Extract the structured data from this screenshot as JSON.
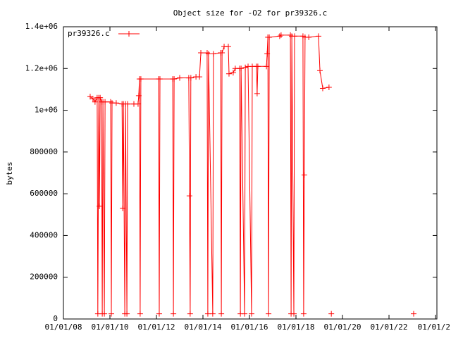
{
  "chart_data": {
    "type": "line",
    "title": "Object size for -O2 for pr39326.c",
    "ylabel": "bytes",
    "xlim": [
      2008,
      2024.06
    ],
    "xticks": [
      {
        "value": 2008,
        "label": "01/01/08"
      },
      {
        "value": 2010,
        "label": "01/01/10"
      },
      {
        "value": 2012,
        "label": "01/01/12"
      },
      {
        "value": 2014,
        "label": "01/01/14"
      },
      {
        "value": 2016,
        "label": "01/01/16"
      },
      {
        "value": 2018,
        "label": "01/01/18"
      },
      {
        "value": 2020,
        "label": "01/01/20"
      },
      {
        "value": 2022,
        "label": "01/01/22"
      },
      {
        "value": 2024,
        "label": "01/01/2"
      }
    ],
    "ylim": [
      0,
      1400000
    ],
    "yticks": [
      0,
      200000,
      400000,
      600000,
      800000,
      {
        "value": 1000000,
        "label": "1e+06"
      },
      {
        "value": 1200000,
        "label": "1.2e+06"
      },
      {
        "value": 1400000,
        "label": "1.4e+06"
      }
    ],
    "legend": "top-left",
    "series": [
      {
        "name": "pr39326.c",
        "color": "#ff0000",
        "x": [
          2009.15,
          2009.27,
          2009.36,
          2009.45,
          2009.48,
          2009.52,
          2009.55,
          2009.58,
          2009.64,
          2009.67,
          2009.7,
          2009.76,
          2009.79,
          2010.03,
          2010.06,
          2010.09,
          2010.27,
          2010.52,
          2010.55,
          2010.58,
          2010.64,
          2010.67,
          2010.73,
          2010.76,
          2011.03,
          2011.21,
          2011.24,
          2011.27,
          2011.3,
          2011.33,
          2012.09,
          2012.12,
          2012.15,
          2012.7,
          2012.73,
          2012.76,
          2013.0,
          2013.39,
          2013.42,
          2013.45,
          2013.48,
          2013.7,
          2013.85,
          2013.91,
          2014.18,
          2014.21,
          2014.24,
          2014.42,
          2014.45,
          2014.76,
          2014.79,
          2014.82,
          2014.91,
          2015.09,
          2015.12,
          2015.3,
          2015.39,
          2015.58,
          2015.61,
          2015.64,
          2015.79,
          2015.82,
          2015.94,
          2016.09,
          2016.12,
          2016.3,
          2016.33,
          2016.36,
          2016.73,
          2016.76,
          2016.79,
          2016.82,
          2016.85,
          2017.3,
          2017.36,
          2017.76,
          2017.79,
          2017.82,
          2017.91,
          2017.94,
          2018.3,
          2018.33,
          2018.36,
          2018.39,
          2018.55,
          2018.97,
          2019.03,
          2019.15,
          2019.42,
          2019.5,
          2019.52,
          2020.5,
          2023.06
        ],
        "values": [
          1065000,
          1055000,
          1040000,
          1060000,
          25000,
          1060000,
          540000,
          1060000,
          1040000,
          25000,
          1040000,
          25000,
          1040000,
          1040000,
          25000,
          1035000,
          1035000,
          1030000,
          530000,
          1030000,
          25000,
          1030000,
          25000,
          1030000,
          1030000,
          1030000,
          1070000,
          1150000,
          25000,
          1150000,
          1150000,
          25000,
          1150000,
          1150000,
          25000,
          1150000,
          1155000,
          1155000,
          590000,
          25000,
          1155000,
          1160000,
          1160000,
          1275000,
          1275000,
          25000,
          1270000,
          25000,
          1270000,
          1275000,
          25000,
          1275000,
          1305000,
          1305000,
          1175000,
          1180000,
          1200000,
          1200000,
          25000,
          1200000,
          25000,
          1205000,
          1210000,
          25000,
          1210000,
          1210000,
          1080000,
          1210000,
          1210000,
          1270000,
          1350000,
          25000,
          1350000,
          1355000,
          1360000,
          1360000,
          25000,
          1355000,
          25000,
          1355000,
          1355000,
          25000,
          690000,
          1350000,
          1350000,
          1355000,
          1190000,
          1105000,
          1110000,
          null,
          25000,
          null,
          25000
        ]
      }
    ]
  }
}
